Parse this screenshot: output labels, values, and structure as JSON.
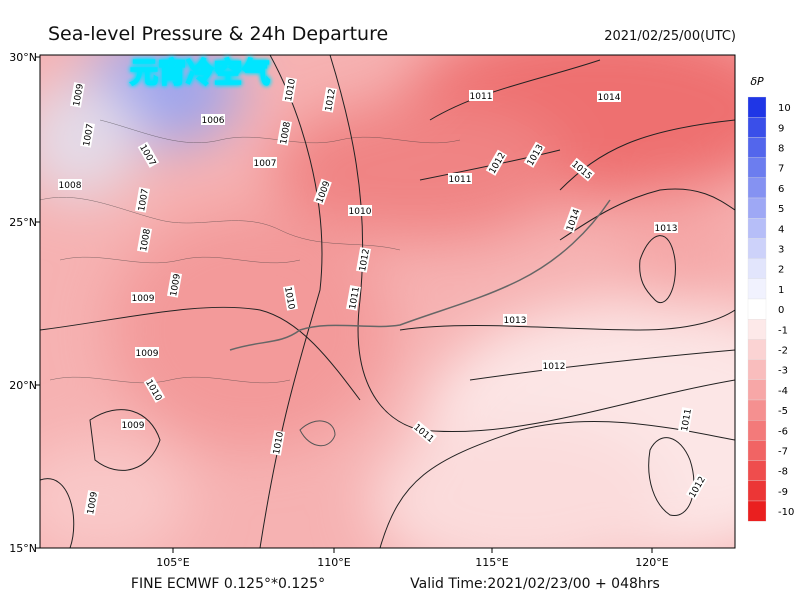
{
  "header": {
    "title": "Sea-level Pressure & 24h Departure",
    "datetime": "2021/02/25/00(UTC)"
  },
  "overlay_text": "元宵冷空气",
  "map": {
    "lat_labels": [
      "30°N",
      "25°N",
      "20°N",
      "15°N"
    ],
    "lon_labels": [
      "105°E",
      "110°E",
      "115°E",
      "120°E"
    ],
    "isobar_labels": [
      1009,
      1007,
      1006,
      1008,
      1010,
      1012,
      1007,
      1007,
      1008,
      1007,
      1009,
      1010,
      1011,
      1014,
      1011,
      1012,
      1013,
      1015,
      1014,
      1013,
      1008,
      1009,
      1009,
      1012,
      1011,
      1010,
      1013,
      1012,
      1009,
      1010,
      1009,
      1010,
      1011,
      1011,
      1012,
      1009
    ]
  },
  "colorbar": {
    "label": "δP",
    "ticks": [
      10,
      9,
      8,
      7,
      6,
      5,
      4,
      3,
      2,
      1,
      0,
      -1,
      -2,
      -3,
      -4,
      -5,
      -6,
      -7,
      -8,
      -9,
      -10
    ],
    "colors": [
      "#1f36e6",
      "#3a4fe9",
      "#5366ec",
      "#6c7def",
      "#8592f2",
      "#9ea8f5",
      "#b6bef8",
      "#cdd2fa",
      "#e2e5fc",
      "#f1f2fe",
      "#ffffff",
      "#fde9e9",
      "#fbd3d3",
      "#f9bdbd",
      "#f7a7a7",
      "#f59090",
      "#f37a7a",
      "#f16464",
      "#ef4d4d",
      "#ec3636",
      "#ea1f1f"
    ]
  },
  "footer": {
    "model": "FINE ECMWF 0.125°*0.125°",
    "valid_time": "Valid Time:2021/02/23/00 + 048hrs"
  }
}
